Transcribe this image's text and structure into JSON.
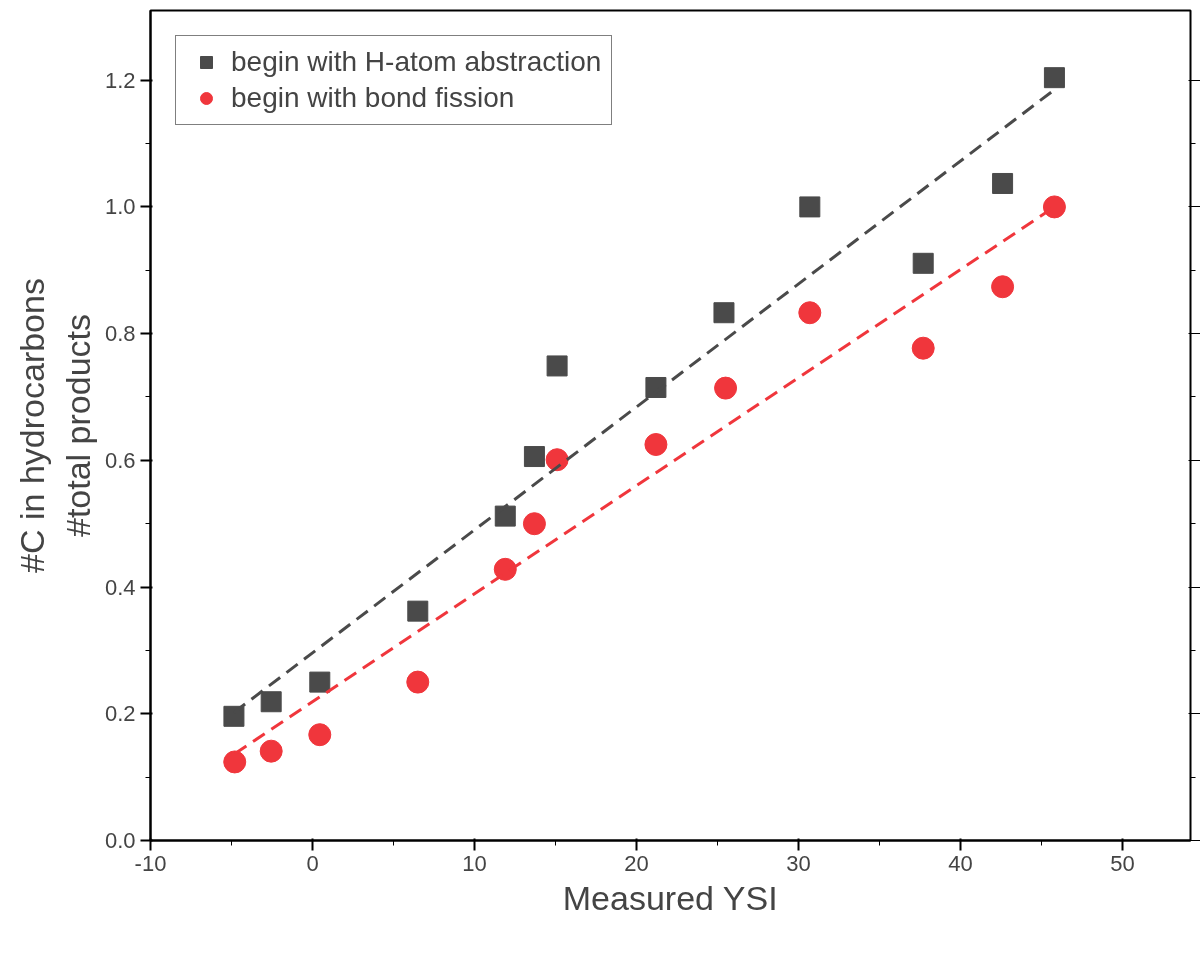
{
  "chart_data": {
    "type": "scatter",
    "xlabel": "Measured YSI",
    "ylabel": "#C in hydrocarbons\n#total products",
    "xlim": [
      -10,
      54.2
    ],
    "ylim": [
      0,
      1.31
    ],
    "xticks": [
      -10,
      0,
      10,
      20,
      30,
      40,
      50
    ],
    "yticks": [
      {
        "value": 0,
        "label": "0.0"
      },
      0.2,
      0.4,
      0.6,
      0.8,
      {
        "value": 1,
        "label": "1.0"
      },
      1.2
    ],
    "grid": false,
    "legend": "top left",
    "series": [
      {
        "name": "begin with H-atom abstraction",
        "color": "#4a4a4a",
        "marker": "square",
        "x": [
          -4.85,
          -2.55,
          0.45,
          6.5,
          11.9,
          13.7,
          15.1,
          21.2,
          25.4,
          30.7,
          37.7,
          42.6,
          45.8
        ],
        "values": [
          0.196,
          0.219,
          0.25,
          0.362,
          0.512,
          0.606,
          0.749,
          0.715,
          0.833,
          1.0,
          0.911,
          1.037,
          1.204
        ]
      },
      {
        "name": "begin with bond fission",
        "color": "#f0363c",
        "marker": "circle",
        "x": [
          -4.8,
          -2.55,
          0.45,
          6.5,
          11.9,
          13.7,
          15.1,
          21.2,
          25.5,
          30.7,
          37.7,
          42.6,
          45.8
        ],
        "values": [
          0.124,
          0.141,
          0.167,
          0.25,
          0.428,
          0.5,
          0.601,
          0.625,
          0.714,
          0.833,
          0.777,
          0.874,
          1.0
        ]
      },
      {
        "type": "line",
        "color": "#4a4a4a",
        "line_style": "dashed",
        "x": [
          -4.85,
          45.8
        ],
        "values": [
          0.202,
          1.185
        ]
      },
      {
        "type": "line",
        "color": "#f0363c",
        "line_style": "dashed",
        "x": [
          -4.8,
          45.8
        ],
        "values": [
          0.137,
          1.0
        ]
      }
    ]
  }
}
